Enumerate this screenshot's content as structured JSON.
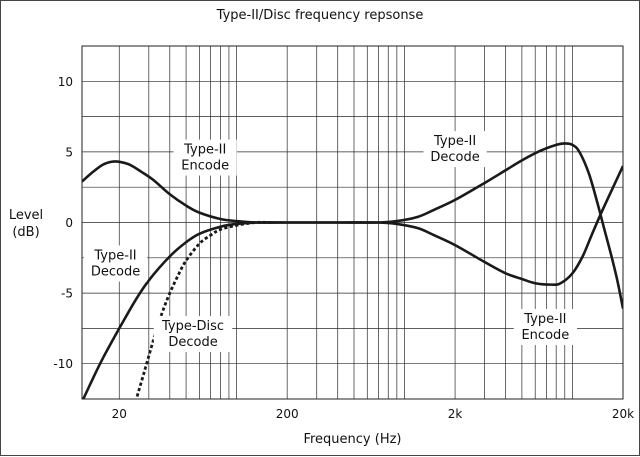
{
  "chart_data": {
    "type": "line",
    "title": "Type-II/Disc frequency repsonse",
    "xlabel": "Frequency (Hz)",
    "ylabel_lines": [
      "Level",
      "(dB)"
    ],
    "x_scale": "log",
    "xlim": [
      12,
      20000
    ],
    "ylim": [
      -12.5,
      12.5
    ],
    "x_ticks": [
      {
        "value": 20,
        "label": "20"
      },
      {
        "value": 200,
        "label": "200"
      },
      {
        "value": 2000,
        "label": "2k"
      },
      {
        "value": 20000,
        "label": "20k"
      }
    ],
    "y_ticks": [
      10,
      5,
      0,
      -5,
      -10
    ],
    "grid": true,
    "series": [
      {
        "style": "solid",
        "points": [
          [
            12,
            2.9
          ],
          [
            14,
            3.6
          ],
          [
            16,
            4.1
          ],
          [
            18,
            4.3
          ],
          [
            20,
            4.3
          ],
          [
            23,
            4.1
          ],
          [
            27,
            3.6
          ],
          [
            32,
            3.0
          ],
          [
            40,
            2.0
          ],
          [
            50,
            1.2
          ],
          [
            60,
            0.7
          ],
          [
            80,
            0.25
          ],
          [
            100,
            0.1
          ],
          [
            130,
            0.0
          ],
          [
            200,
            0.0
          ],
          [
            400,
            0.0
          ],
          [
            700,
            0.0
          ],
          [
            900,
            0.1
          ],
          [
            1200,
            0.4
          ],
          [
            1500,
            0.9
          ],
          [
            2000,
            1.6
          ],
          [
            3000,
            2.8
          ],
          [
            4000,
            3.7
          ],
          [
            5000,
            4.4
          ],
          [
            6500,
            5.1
          ],
          [
            8000,
            5.5
          ],
          [
            9000,
            5.6
          ],
          [
            10000,
            5.5
          ],
          [
            11000,
            5.0
          ],
          [
            12500,
            3.5
          ],
          [
            14000,
            1.5
          ],
          [
            15500,
            -0.5
          ],
          [
            17000,
            -2.3
          ],
          [
            18500,
            -4.1
          ],
          [
            20000,
            -6.1
          ]
        ]
      },
      {
        "style": "solid",
        "points": [
          [
            12,
            -12.7
          ],
          [
            14,
            -11.0
          ],
          [
            16,
            -9.6
          ],
          [
            20,
            -7.5
          ],
          [
            25,
            -5.5
          ],
          [
            30,
            -4.1
          ],
          [
            40,
            -2.4
          ],
          [
            50,
            -1.4
          ],
          [
            60,
            -0.8
          ],
          [
            80,
            -0.3
          ],
          [
            100,
            -0.1
          ],
          [
            130,
            0.0
          ],
          [
            200,
            0.0
          ],
          [
            400,
            0.0
          ],
          [
            700,
            0.0
          ],
          [
            900,
            -0.1
          ],
          [
            1200,
            -0.4
          ],
          [
            1500,
            -0.9
          ],
          [
            2000,
            -1.6
          ],
          [
            3000,
            -2.8
          ],
          [
            4000,
            -3.6
          ],
          [
            5000,
            -4.0
          ],
          [
            6000,
            -4.3
          ],
          [
            7500,
            -4.4
          ],
          [
            8500,
            -4.3
          ],
          [
            10000,
            -3.6
          ],
          [
            11500,
            -2.4
          ],
          [
            13000,
            -0.9
          ],
          [
            15000,
            0.8
          ],
          [
            17000,
            2.2
          ],
          [
            20000,
            4.0
          ]
        ]
      },
      {
        "style": "dashed",
        "points": [
          [
            25,
            -12.7
          ],
          [
            28,
            -10.7
          ],
          [
            32,
            -8.3
          ],
          [
            36,
            -6.4
          ],
          [
            40,
            -5.0
          ],
          [
            45,
            -3.7
          ],
          [
            50,
            -2.7
          ],
          [
            60,
            -1.5
          ],
          [
            70,
            -0.9
          ],
          [
            80,
            -0.5
          ],
          [
            100,
            -0.2
          ],
          [
            130,
            0.0
          ],
          [
            160,
            0.0
          ]
        ]
      }
    ],
    "annotations": [
      {
        "lines": [
          "Type-II",
          "Encode"
        ],
        "x": 65,
        "y": 4.6
      },
      {
        "lines": [
          "Type-II",
          "Decode"
        ],
        "x": 2000,
        "y": 5.2
      },
      {
        "lines": [
          "Type-II",
          "Decode"
        ],
        "x": 19,
        "y": -2.9
      },
      {
        "lines": [
          "Type-Disc",
          "Decode"
        ],
        "x": 55,
        "y": -7.9
      },
      {
        "lines": [
          "Type-II",
          "Encode"
        ],
        "x": 6900,
        "y": -7.4
      }
    ]
  }
}
